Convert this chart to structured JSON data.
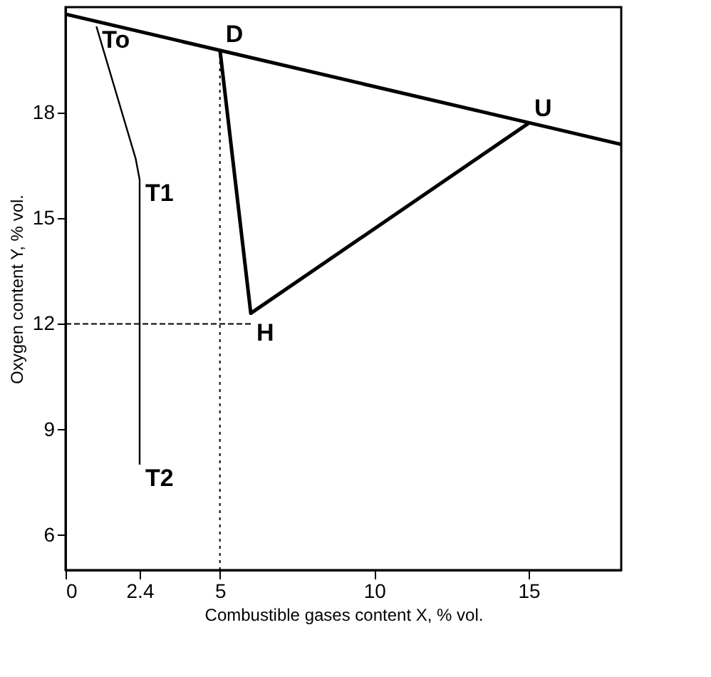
{
  "chart_data": {
    "type": "line",
    "xlabel": "Combustible  gases content X, % vol.",
    "ylabel": "Oxygen content Y, % vol.",
    "xlim": [
      0,
      18
    ],
    "xticks": [
      0,
      {
        "value": 2.4,
        "label": "2.4"
      },
      5,
      10,
      15
    ],
    "ylim": [
      5,
      21
    ],
    "yticks": [
      6,
      9,
      12,
      15,
      18
    ],
    "grid": false,
    "marker": "none",
    "series": [
      {
        "color": "#000000",
        "x": [
          0,
          18
        ],
        "values": [
          20.8,
          17.1
        ]
      },
      {
        "color": "#000000",
        "x": [
          5,
          6,
          15
        ],
        "values": [
          19.8,
          12.3,
          17.7
        ]
      },
      {
        "color": "#000000",
        "x": [
          1,
          2.27,
          2.4,
          2.4
        ],
        "values": [
          20.45,
          16.7,
          16.1,
          8.0
        ]
      },
      {
        "color": "#000000",
        "x": [
          0,
          6
        ],
        "values": [
          12,
          12
        ],
        "line_style": "dashed"
      },
      {
        "color": "#000000",
        "x": [
          5,
          5
        ],
        "values": [
          5,
          19.8
        ],
        "line_style": "dotted"
      }
    ],
    "annotations": [
      {
        "text": "D",
        "x": 5,
        "y": 19.8
      },
      {
        "text": "U",
        "x": 15,
        "y": 17.7
      },
      {
        "text": "H",
        "x": 6,
        "y": 12.3
      },
      {
        "text": "To",
        "x": 1,
        "y": 20.45
      },
      {
        "text": "T1",
        "x": 2.4,
        "y": 16.1
      },
      {
        "text": "T2",
        "x": 2.4,
        "y": 8.0
      }
    ]
  }
}
